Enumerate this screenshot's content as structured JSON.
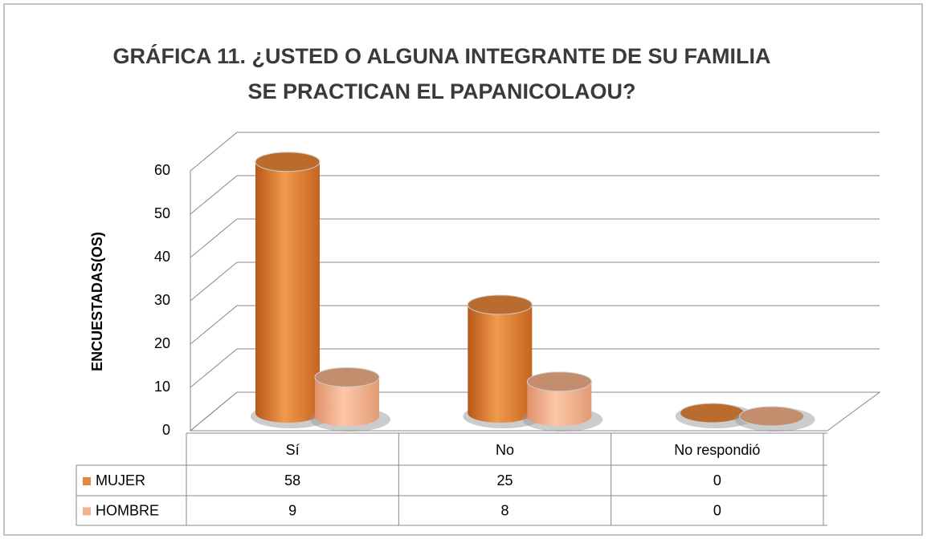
{
  "chart_data": {
    "type": "bar3d",
    "title": "GRÁFICA 11. ¿USTED O ALGUNA INTEGRANTE DE SU FAMILIA SE PRACTICAN EL PAPANICOLAOU?",
    "y_label": "ENCUESTADAS(OS)",
    "categories": [
      "Sí",
      "No",
      "No respondió"
    ],
    "series": [
      {
        "name": "MUJER",
        "color": "#e8873a",
        "values": [
          58,
          25,
          0
        ]
      },
      {
        "name": "HOMBRE",
        "color": "#f4b08a",
        "values": [
          9,
          8,
          0
        ]
      }
    ],
    "ylim": [
      0,
      60
    ],
    "yticks": [
      0,
      10,
      20,
      30,
      40,
      50,
      60
    ],
    "grid": true,
    "data_table": true
  }
}
